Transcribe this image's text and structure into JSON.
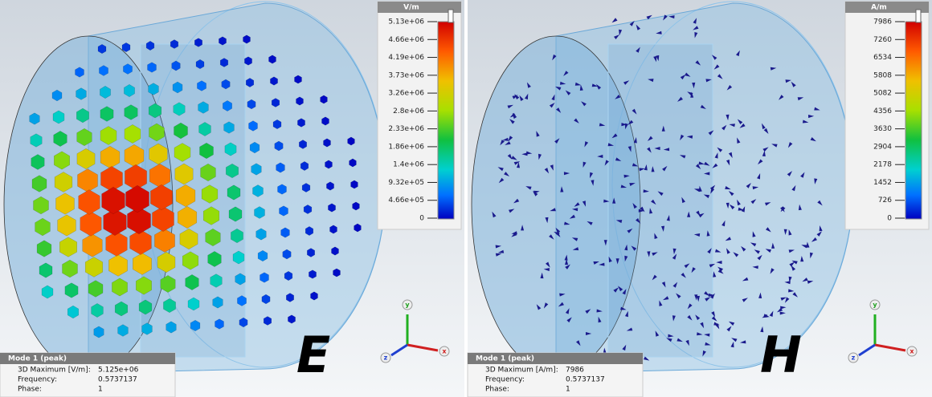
{
  "panels": [
    {
      "legend": {
        "unit": "V/m",
        "ticks": [
          "5.13e+06",
          "4.66e+06",
          "4.19e+06",
          "3.73e+06",
          "3.26e+06",
          "2.8e+06",
          "2.33e+06",
          "1.86e+06",
          "1.4e+06",
          "9.32e+05",
          "4.66e+05",
          "0"
        ]
      },
      "info": {
        "title": "Mode 1 (peak)",
        "rows": [
          [
            "3D Maximum [V/m]:",
            "5.125e+06"
          ],
          [
            "Frequency:",
            "0.5737137"
          ],
          [
            "Phase:",
            "1"
          ]
        ]
      },
      "axes": {
        "y": "y",
        "x": "x",
        "z": "z"
      },
      "label": "E"
    },
    {
      "legend": {
        "unit": "A/m",
        "ticks": [
          "7986",
          "7260",
          "6534",
          "5808",
          "5082",
          "4356",
          "3630",
          "2904",
          "2178",
          "1452",
          "726",
          "0"
        ]
      },
      "info": {
        "title": "Mode 1 (peak)",
        "rows": [
          [
            "3D Maximum [A/m]:",
            "7986"
          ],
          [
            "Frequency:",
            "0.5737137"
          ],
          [
            "Phase:",
            "1"
          ]
        ]
      },
      "axes": {
        "y": "y",
        "x": "x",
        "z": "z"
      },
      "label": "H"
    }
  ]
}
